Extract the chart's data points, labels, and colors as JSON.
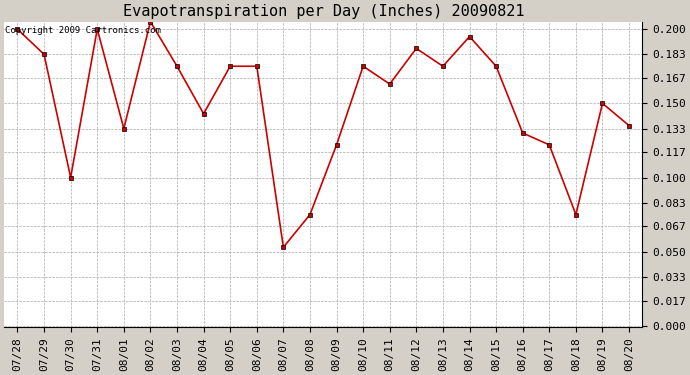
{
  "title": "Evapotranspiration per Day (Inches) 20090821",
  "copyright_text": "Copyright 2009 Cartronics.com",
  "x_labels": [
    "07/28",
    "07/29",
    "07/30",
    "07/31",
    "08/01",
    "08/02",
    "08/03",
    "08/04",
    "08/05",
    "08/06",
    "08/07",
    "08/08",
    "08/09",
    "08/10",
    "08/11",
    "08/12",
    "08/13",
    "08/14",
    "08/15",
    "08/16",
    "08/17",
    "08/18",
    "08/19",
    "08/20"
  ],
  "y_values": [
    0.2,
    0.183,
    0.1,
    0.2,
    0.133,
    0.205,
    0.175,
    0.143,
    0.175,
    0.175,
    0.053,
    0.075,
    0.122,
    0.175,
    0.163,
    0.187,
    0.175,
    0.195,
    0.175,
    0.13,
    0.122,
    0.075,
    0.15,
    0.135
  ],
  "line_color": "#cc0000",
  "marker": "s",
  "marker_size": 3,
  "marker_edge_color": "#000000",
  "bg_color": "#d4d0c8",
  "plot_bg_color": "#ffffff",
  "grid_color": "#aaaaaa",
  "ylim_min": 0.0,
  "ylim_max": 0.2,
  "yticks": [
    0.0,
    0.017,
    0.033,
    0.05,
    0.067,
    0.083,
    0.1,
    0.117,
    0.133,
    0.15,
    0.167,
    0.183,
    0.2
  ],
  "title_fontsize": 11,
  "tick_fontsize": 8,
  "copyright_fontsize": 6.5
}
